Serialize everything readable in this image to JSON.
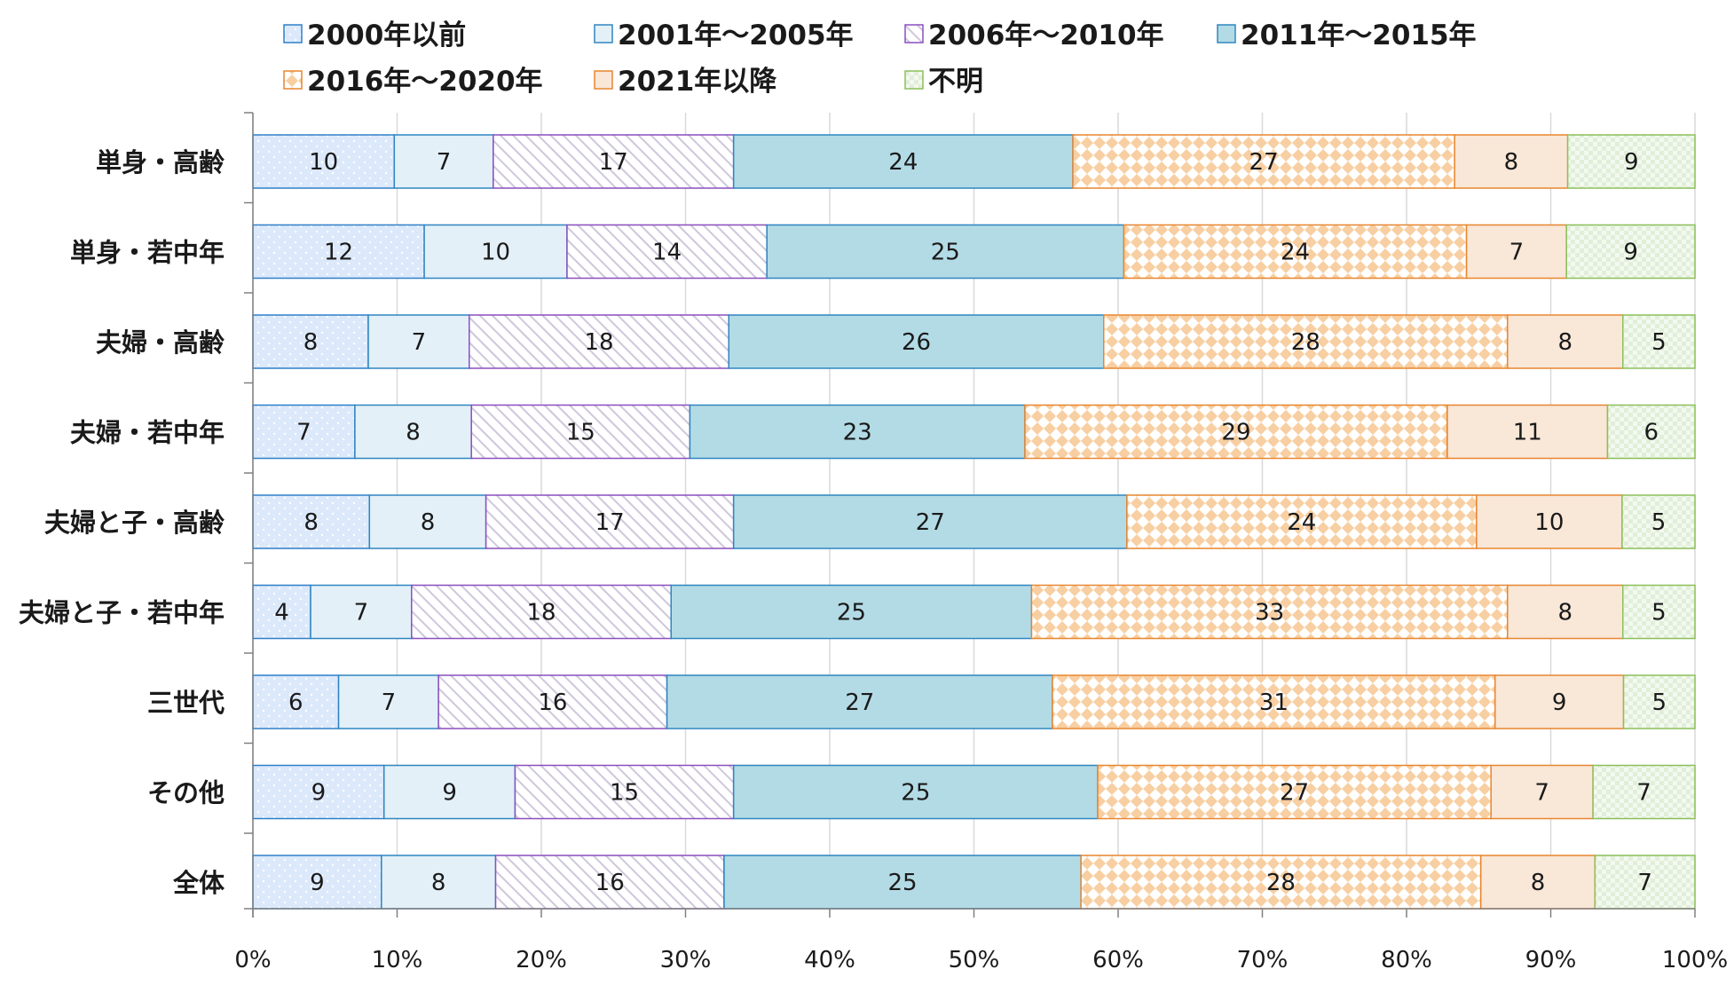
{
  "chart_data": {
    "type": "bar",
    "orientation": "horizontal",
    "stacked": "percent",
    "categories": [
      "単身・高齢",
      "単身・若中年",
      "夫婦・高齢",
      "夫婦・若中年",
      "夫婦と子・高齢",
      "夫婦と子・若中年",
      "三世代",
      "その他",
      "全体"
    ],
    "series": [
      {
        "name": "2000年以前",
        "values": [
          10,
          12,
          8,
          7,
          8,
          4,
          6,
          9,
          9
        ],
        "fill": "#dce9fb",
        "stroke": "#2f80c8",
        "pattern": "dots"
      },
      {
        "name": "2001年～2005年",
        "values": [
          7,
          10,
          7,
          8,
          8,
          7,
          7,
          9,
          8
        ],
        "fill": "#e3f0f8",
        "stroke": "#2f86c0",
        "pattern": "solid"
      },
      {
        "name": "2006年～2010年",
        "values": [
          17,
          14,
          18,
          15,
          17,
          18,
          16,
          15,
          16
        ],
        "fill": "#ffffff",
        "stroke": "#8a4fbf",
        "pattern": "hatch"
      },
      {
        "name": "2011年～2015年",
        "values": [
          24,
          25,
          26,
          23,
          27,
          25,
          27,
          25,
          25
        ],
        "fill": "#b3dbe5",
        "stroke": "#2f86c0",
        "pattern": "solid"
      },
      {
        "name": "2016年～2020年",
        "values": [
          27,
          24,
          28,
          29,
          24,
          33,
          31,
          27,
          28
        ],
        "fill": "#fde3c8",
        "stroke": "#e8862f",
        "pattern": "diamond"
      },
      {
        "name": "2021年以降",
        "values": [
          8,
          7,
          8,
          11,
          10,
          8,
          9,
          7,
          8
        ],
        "fill": "#f9e7d8",
        "stroke": "#e8862f",
        "pattern": "solid"
      },
      {
        "name": "不明",
        "values": [
          9,
          9,
          5,
          6,
          5,
          5,
          5,
          7,
          7
        ],
        "fill": "#f1f8ee",
        "stroke": "#8cbf5a",
        "pattern": "check"
      }
    ],
    "x_ticks": [
      "0%",
      "10%",
      "20%",
      "30%",
      "40%",
      "50%",
      "60%",
      "70%",
      "80%",
      "90%",
      "100%"
    ],
    "xlim": [
      0,
      100
    ],
    "grid": true,
    "legend_position": "top"
  }
}
